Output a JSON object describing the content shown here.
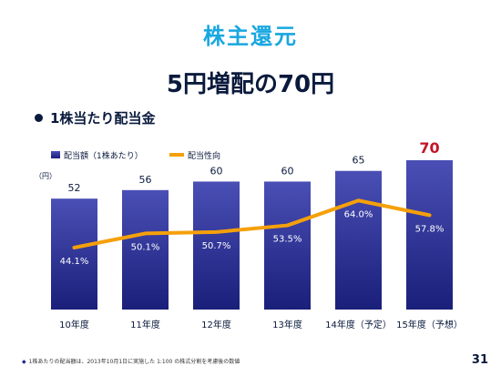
{
  "slide": {
    "title": "株主還元",
    "headline": "5円増配の70円",
    "section_heading": "1株当たり配当金",
    "footnote": "1株あたりの配当額は、2013年10月1日に実施した 1:100 の株式分割を考慮後の数値",
    "page_number": "31"
  },
  "colors": {
    "title": "#19a7e0",
    "bar_top": "#4a4fb5",
    "bar_bottom": "#1a1f7a",
    "line": "#f5a00a",
    "highlight_value": "#c0152a",
    "text_dark": "#0a1a3c"
  },
  "chart_data": {
    "type": "bar",
    "unit_label": "（円）",
    "categories": [
      "10年度",
      "11年度",
      "12年度",
      "13年度",
      "14年度（予定）",
      "15年度（予想）"
    ],
    "series": [
      {
        "name": "配当額（1株あたり）",
        "type": "bar",
        "values": [
          52,
          56,
          60,
          60,
          65,
          70
        ],
        "labels": [
          "52",
          "56",
          "60",
          "60",
          "65",
          "70"
        ],
        "highlight_index": 5
      },
      {
        "name": "配当性向",
        "type": "line",
        "values": [
          44.1,
          50.1,
          50.7,
          53.5,
          64.0,
          57.8
        ],
        "labels": [
          "44.1%",
          "50.1%",
          "50.7%",
          "53.5%",
          "64.0%",
          "57.8%"
        ]
      }
    ],
    "legend_position": "top-left",
    "grid": false
  }
}
